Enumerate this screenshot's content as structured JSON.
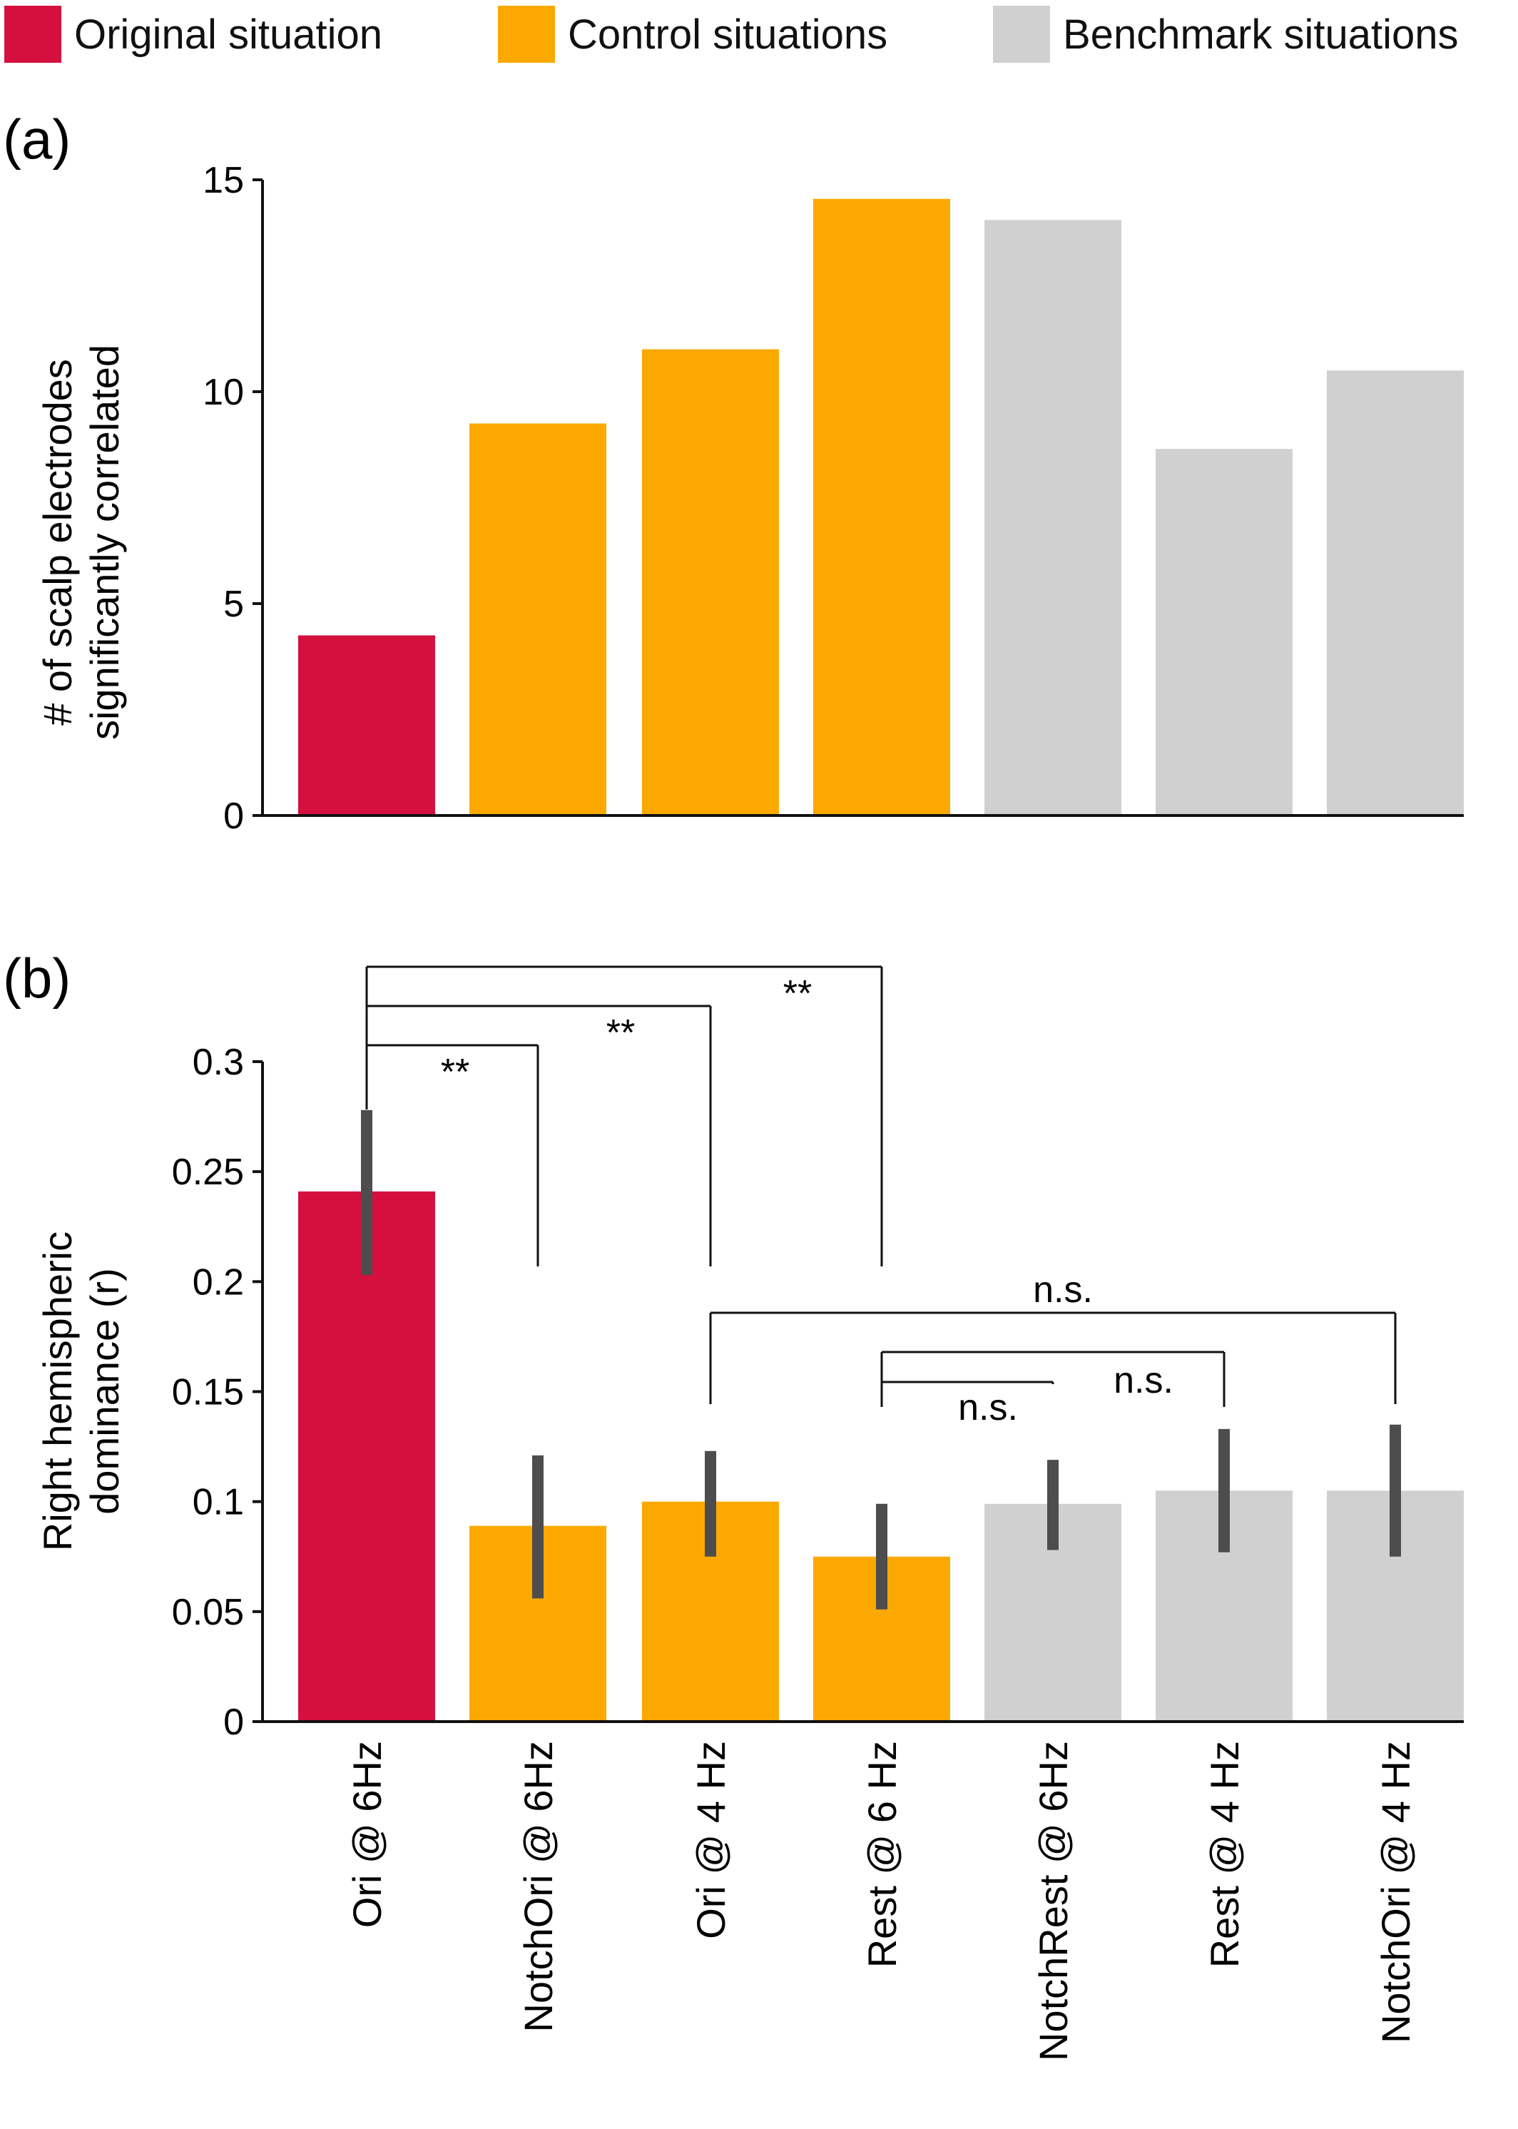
{
  "colors": {
    "original": "#d5103f",
    "control": "#fba900",
    "benchmark": "#d0d0d0",
    "errorbar": "#4d4d4d",
    "axis": "#111111"
  },
  "legend": {
    "items": [
      {
        "label": "Original situation",
        "color": "#d5103f"
      },
      {
        "label": "Control situations",
        "color": "#fba900"
      },
      {
        "label": "Benchmark situations",
        "color": "#d0d0d0"
      }
    ]
  },
  "chart_data": [
    {
      "type": "bar",
      "panel_label": "(a)",
      "ylabel_lines": [
        "# of scalp electrodes",
        "significantly correlated"
      ],
      "ylim": [
        0,
        15
      ],
      "yticks": [
        "0",
        "5",
        "10",
        "15"
      ],
      "categories": [
        "Ori @ 6Hz",
        "NotchOri @ 6Hz",
        "Ori @ 4 Hz",
        "Rest @ 6 Hz",
        "NotchRest @ 6Hz",
        "Rest @ 4 Hz",
        "NotchOri @ 4 Hz"
      ],
      "groups": [
        "original",
        "control",
        "control",
        "control",
        "benchmark",
        "benchmark",
        "benchmark"
      ],
      "values": [
        4.25,
        9.25,
        11.0,
        14.55,
        14.05,
        8.65,
        10.5
      ]
    },
    {
      "type": "bar",
      "panel_label": "(b)",
      "ylabel_lines": [
        "Right hemispheric",
        "dominance (r)"
      ],
      "ylim": [
        0,
        0.3
      ],
      "yticks": [
        "0",
        "0.05",
        "0.1",
        "0.15",
        "0.2",
        "0.25",
        "0.3"
      ],
      "categories": [
        "Ori @ 6Hz",
        "NotchOri @ 6Hz",
        "Ori @ 4 Hz",
        "Rest @ 6 Hz",
        "NotchRest @ 6Hz",
        "Rest @ 4 Hz",
        "NotchOri @ 4 Hz"
      ],
      "groups": [
        "original",
        "control",
        "control",
        "control",
        "benchmark",
        "benchmark",
        "benchmark"
      ],
      "values": [
        0.241,
        0.089,
        0.1,
        0.075,
        0.099,
        0.105,
        0.105
      ],
      "error_low": [
        0.203,
        0.056,
        0.075,
        0.051,
        0.078,
        0.077,
        0.075
      ],
      "error_high": [
        0.278,
        0.121,
        0.123,
        0.099,
        0.119,
        0.133,
        0.135
      ],
      "significance": [
        {
          "from": 0,
          "to": 1,
          "label": "**"
        },
        {
          "from": 0,
          "to": 2,
          "label": "**"
        },
        {
          "from": 0,
          "to": 3,
          "label": "**"
        },
        {
          "from": 2,
          "to": 6,
          "label": "n.s."
        },
        {
          "from": 3,
          "to": 4,
          "label": "n.s."
        },
        {
          "from": 3,
          "to": 5,
          "label": "n.s."
        }
      ]
    }
  ]
}
